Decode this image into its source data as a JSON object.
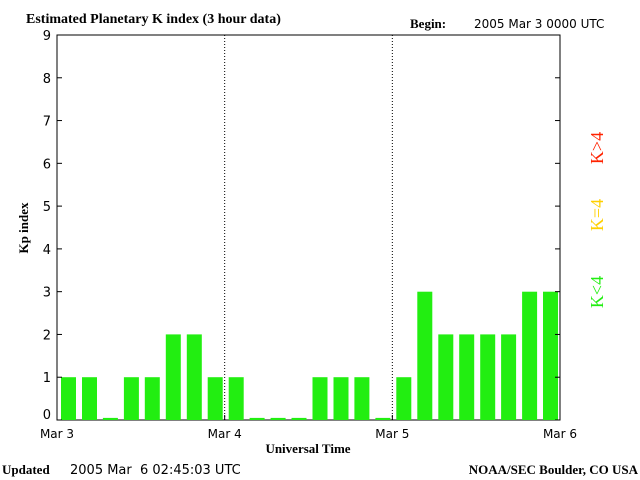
{
  "header": {
    "title": "Estimated Planetary K index (3 hour data)",
    "begin_label": "Begin:",
    "begin_value": "2005 Mar 3 0000 UTC"
  },
  "footer": {
    "updated_label": "Updated",
    "updated_value": "2005 Mar  6 02:45:03 UTC",
    "credit": "NOAA/SEC Boulder, CO USA"
  },
  "legend": [
    {
      "label": "K>4",
      "color": "#ff2200"
    },
    {
      "label": "K=4",
      "color": "#ffd000"
    },
    {
      "label": "K<4",
      "color": "#22ee11"
    }
  ],
  "chart_data": {
    "type": "bar",
    "xlabel": "Universal Time",
    "ylabel": "Kp index",
    "ylim": [
      0,
      9
    ],
    "yticks": [
      "0",
      "1",
      "2",
      "3",
      "4",
      "5",
      "6",
      "7",
      "8",
      "9"
    ],
    "xticks": [
      "Mar 3",
      "Mar 4",
      "Mar 5",
      "Mar 6"
    ],
    "bar_color": "#22ee11",
    "grid": "vertical dotted lines at day boundaries",
    "values": [
      1,
      1,
      0.05,
      1,
      1,
      2,
      2,
      1,
      1,
      0.05,
      0.05,
      0.05,
      1,
      1,
      1,
      0.05,
      1,
      3,
      2,
      2,
      2,
      2,
      3,
      3
    ]
  }
}
